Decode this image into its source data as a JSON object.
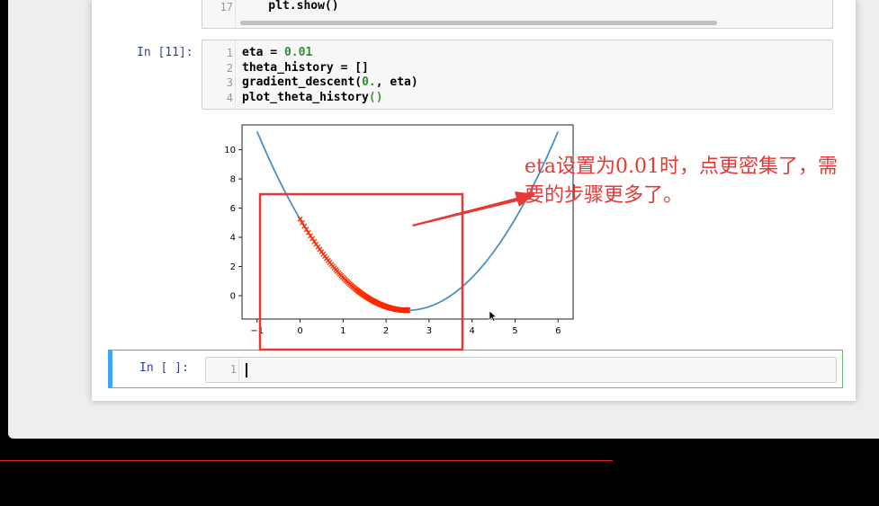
{
  "prev_cell": {
    "line_number": "17",
    "code": "    plt.show()"
  },
  "cell_11": {
    "prompt": "In [11]:",
    "lines": [
      {
        "n": "1",
        "pre": "eta = ",
        "num": "0.01",
        "post": ""
      },
      {
        "n": "2",
        "pre": "theta_history = []",
        "num": "",
        "post": ""
      },
      {
        "n": "3",
        "pre": "gradient_descent(",
        "num": "0.",
        "post": ", eta)"
      },
      {
        "n": "4",
        "pre": "plot_theta_history",
        "paren": "()"
      }
    ]
  },
  "plot": {
    "y_ticks": [
      "10",
      "8",
      "6",
      "4",
      "2",
      "0"
    ],
    "x_ticks": [
      "−1",
      "0",
      "1",
      "2",
      "3",
      "4",
      "5",
      "6"
    ]
  },
  "chart_data": {
    "type": "line",
    "series": [
      {
        "function": "(x-2.5)^2 - 1",
        "x_range": [
          -1,
          6
        ],
        "color": "#4a90c2"
      },
      {
        "points": "gradient descent theta history, eta=0.01, from x=0 toward x=2.5",
        "color": "#ff2a00",
        "marker": "x"
      }
    ],
    "xlim": [
      -1.35,
      6.35
    ],
    "ylim": [
      -1.6,
      11.7
    ],
    "x_ticks": [
      -1,
      0,
      1,
      2,
      3,
      4,
      5,
      6
    ],
    "y_ticks": [
      0,
      2,
      4,
      6,
      8,
      10
    ]
  },
  "annotation": {
    "text": "eta设置为0.01时，点更密集了，需要的步骤更多了。",
    "color": "#e53935"
  },
  "new_cell": {
    "prompt": "In [ ]:",
    "line_number": "1"
  }
}
